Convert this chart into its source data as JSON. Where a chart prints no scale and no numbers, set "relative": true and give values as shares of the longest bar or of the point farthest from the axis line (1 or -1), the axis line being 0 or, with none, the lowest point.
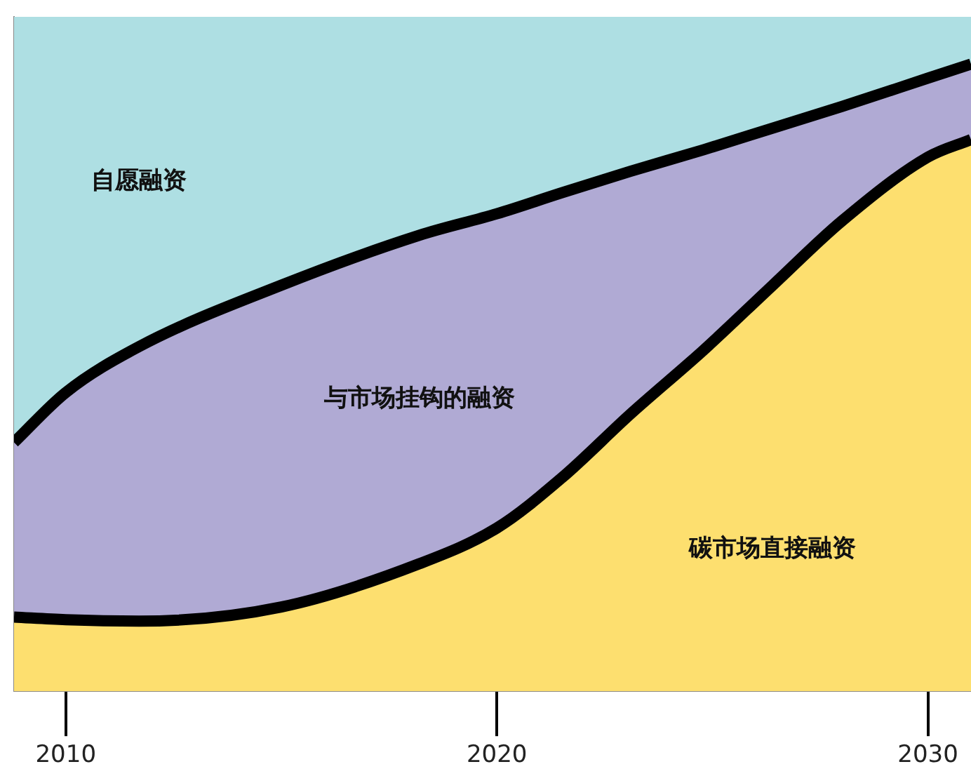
{
  "chart_data": {
    "type": "area",
    "stacked": true,
    "relative": true,
    "x": [
      2008.8,
      2010,
      2011.7,
      2015,
      2018.2,
      2020,
      2021.5,
      2023.1,
      2024.8,
      2026.4,
      2028,
      2030,
      2031
    ],
    "xlim": [
      2008.8,
      2031
    ],
    "xticks": [
      2010,
      2020,
      2030
    ],
    "tick_labels": "x",
    "grid": false,
    "legend": false,
    "series": [
      {
        "name": "碳市场直接融资",
        "color": "#fddf6f",
        "values": [
          0.11,
          0.106,
          0.104,
          0.125,
          0.189,
          0.242,
          0.316,
          0.411,
          0.506,
          0.602,
          0.697,
          0.792,
          0.818
        ]
      },
      {
        "name": "与市场挂钩的融资",
        "color": "#b0aad4",
        "values": [
          0.259,
          0.337,
          0.407,
          0.477,
          0.487,
          0.466,
          0.423,
          0.36,
          0.297,
          0.233,
          0.17,
          0.117,
          0.112
        ]
      },
      {
        "name": "自愿融资",
        "color": "#aedfe3",
        "values": [
          0.631,
          0.557,
          0.489,
          0.398,
          0.324,
          0.292,
          0.261,
          0.229,
          0.197,
          0.165,
          0.133,
          0.091,
          0.07
        ]
      }
    ]
  }
}
